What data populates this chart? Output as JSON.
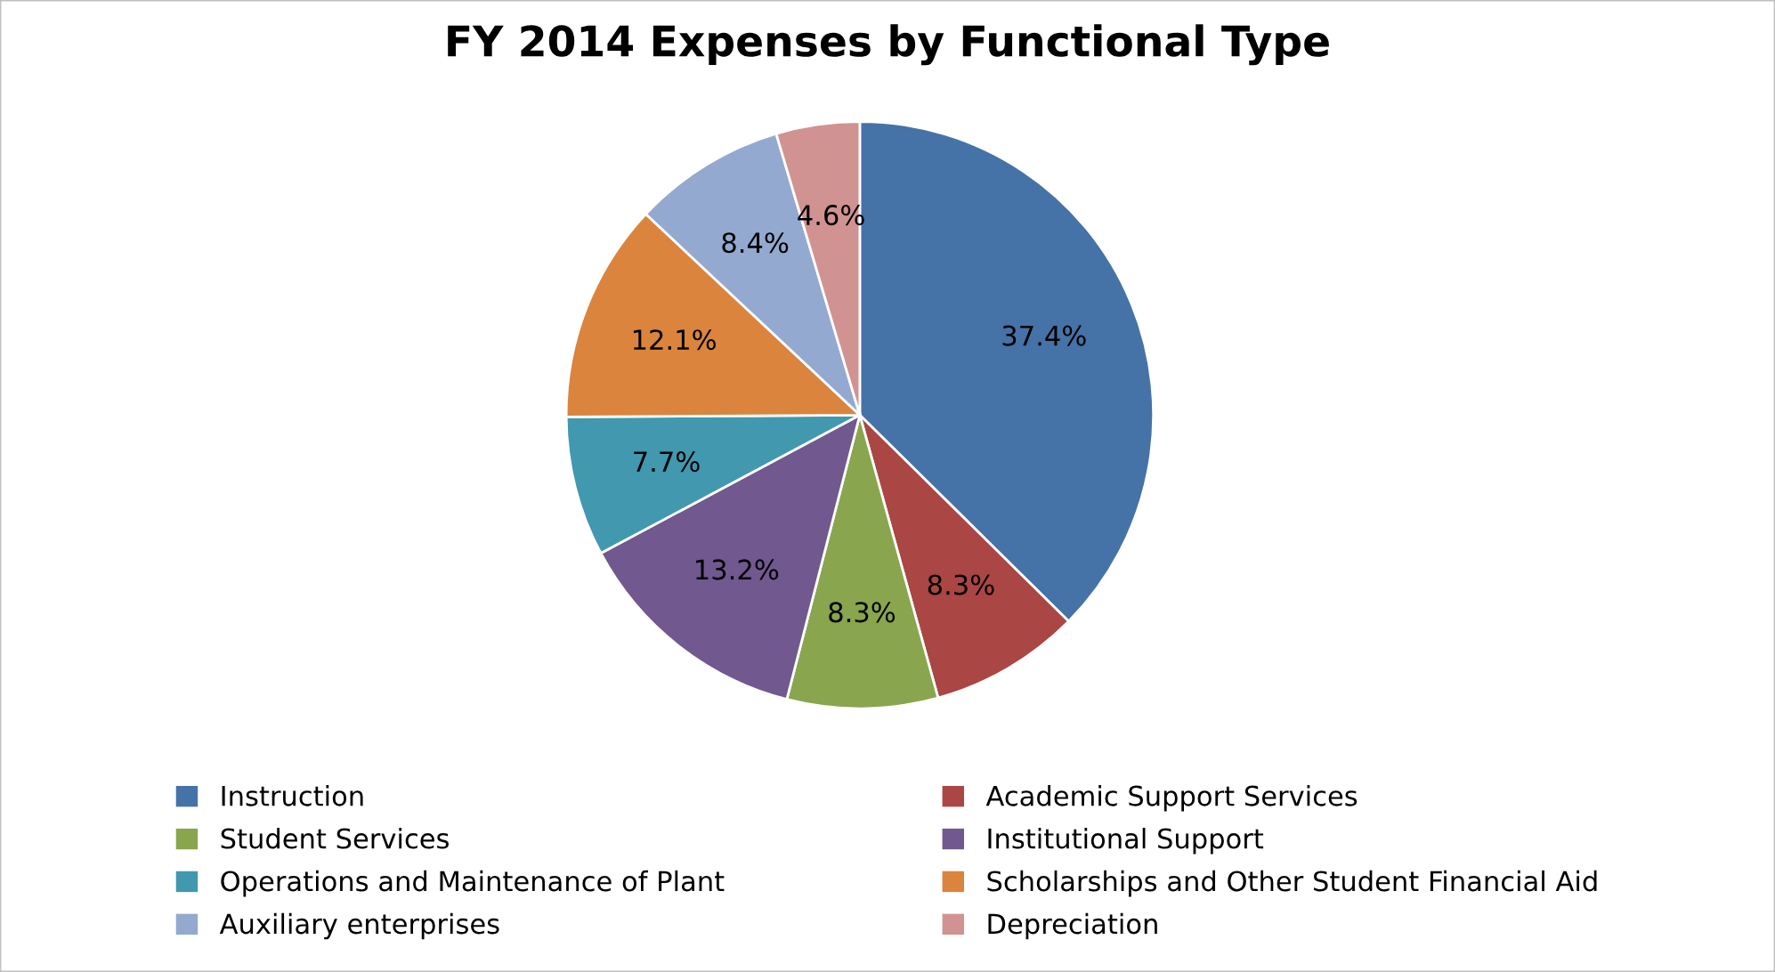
{
  "chart_data": {
    "type": "pie",
    "title": "FY 2014 Expenses by Functional Type",
    "categories": [
      "Instruction",
      "Academic Support Services",
      "Student Services",
      "Institutional Support",
      "Operations and Maintenance of Plant",
      "Scholarships and Other Student Financial Aid",
      "Auxiliary enterprises",
      "Depreciation"
    ],
    "values": [
      37.4,
      8.3,
      8.3,
      13.2,
      7.7,
      12.1,
      8.4,
      4.6
    ],
    "value_labels": [
      "37.4%",
      "8.3%",
      "8.3%",
      "13.2%",
      "7.7%",
      "12.1%",
      "8.4%",
      "4.6%"
    ],
    "colors": [
      "#4572a7",
      "#aa4643",
      "#89a54e",
      "#71588f",
      "#4198af",
      "#db843d",
      "#93a9cf",
      "#d19392"
    ],
    "legend": "bottom"
  }
}
